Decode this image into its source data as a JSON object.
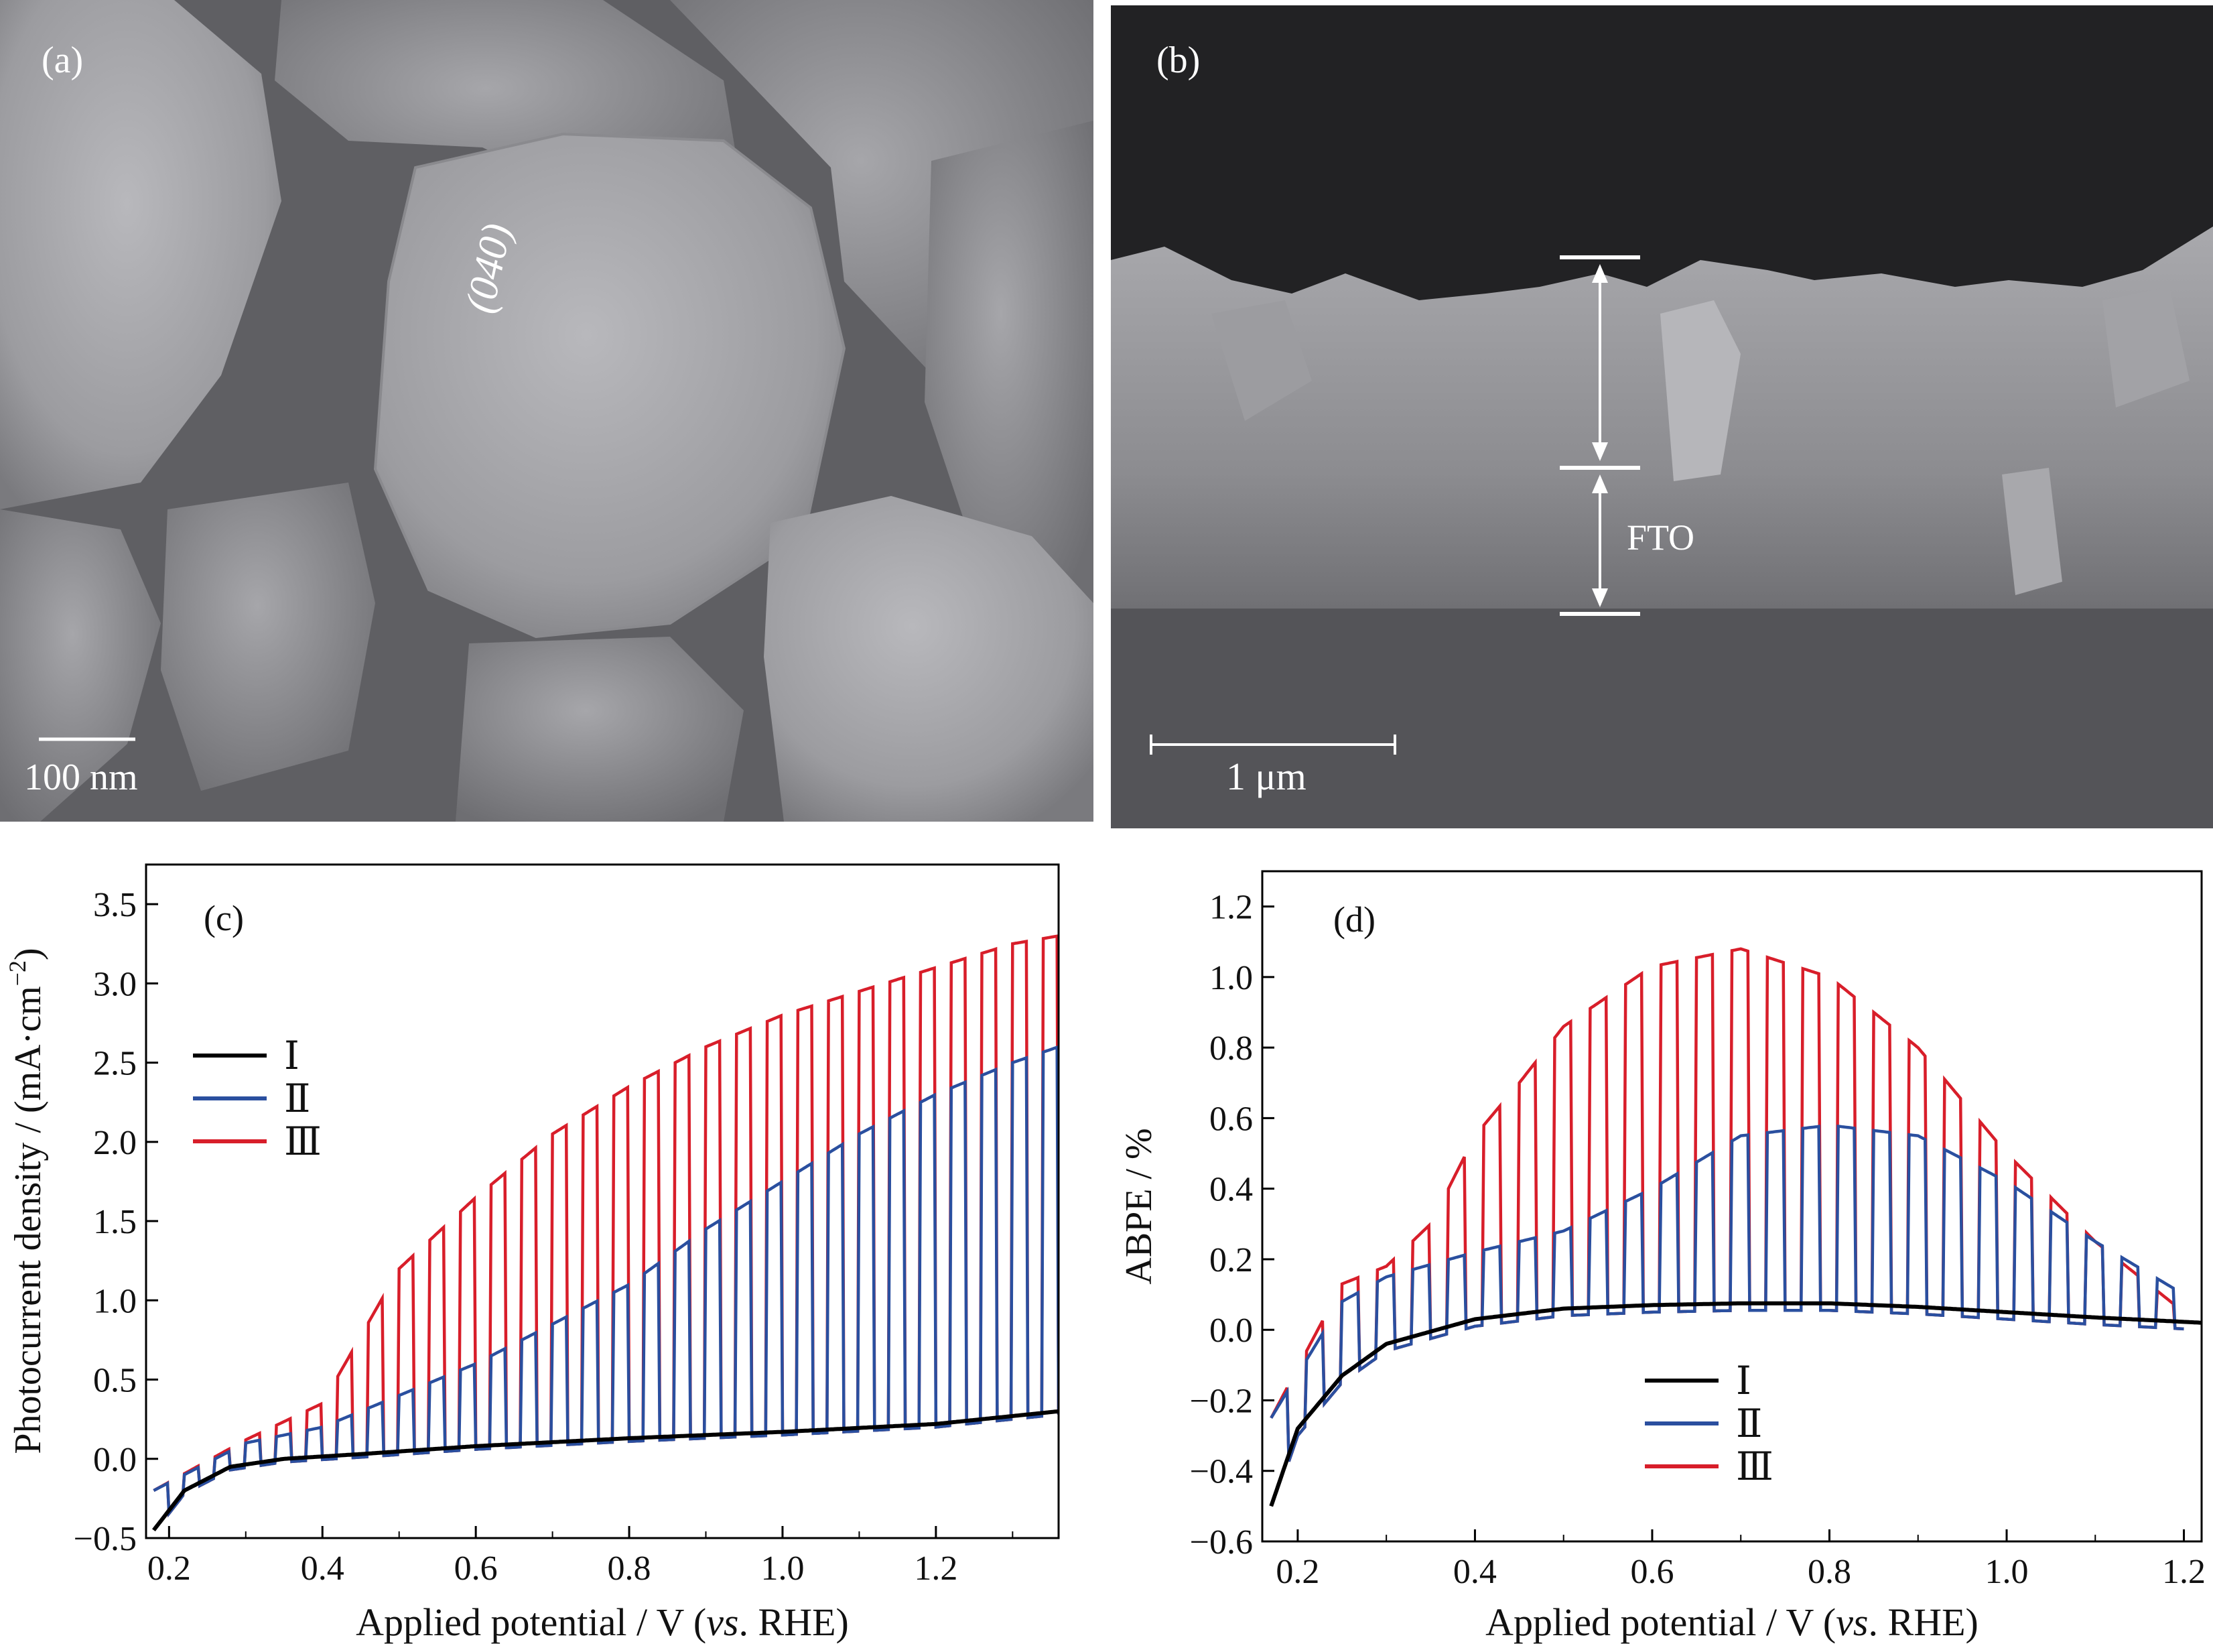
{
  "panels": {
    "a": {
      "label": "(a)",
      "facet_label": "(040)",
      "scalebar_label": "100 nm"
    },
    "b": {
      "label": "(b)",
      "layer_label": "FTO",
      "scalebar_label": "1 μm"
    }
  },
  "chart_data": [
    {
      "panel": "(c)",
      "type": "line",
      "xlabel_main": "Applied potential / V (",
      "xlabel_italic": "vs",
      "xlabel_end": ". RHE)",
      "ylabel": "Photocurrent density / (mA·cm",
      "ylabel_sup": "−2",
      "ylabel_end": ")",
      "xlim": [
        0.17,
        1.36
      ],
      "ylim": [
        -0.5,
        3.75
      ],
      "xticks": [
        0.2,
        0.4,
        0.6,
        0.8,
        1.0,
        1.2
      ],
      "xtick_labels": [
        "0.2",
        "0.4",
        "0.6",
        "0.8",
        "1.0",
        "1.2"
      ],
      "yticks": [
        -0.5,
        0.0,
        0.5,
        1.0,
        1.5,
        2.0,
        2.5,
        3.0,
        3.5
      ],
      "ytick_labels": [
        "−0.5",
        "0.0",
        "0.5",
        "1.0",
        "1.5",
        "2.0",
        "2.5",
        "3.0",
        "3.5"
      ],
      "legend": {
        "placement": "middle-left"
      },
      "chop_period_V": 0.04,
      "series": [
        {
          "name": "Ⅰ",
          "color": "#000000",
          "x": [
            0.18,
            0.22,
            0.28,
            0.35,
            0.45,
            0.6,
            0.8,
            1.0,
            1.2,
            1.36
          ],
          "y": [
            -0.45,
            -0.2,
            -0.05,
            0.0,
            0.03,
            0.08,
            0.13,
            0.17,
            0.22,
            0.3
          ]
        },
        {
          "name": "Ⅱ",
          "color": "#2a4f9f",
          "x": [
            0.18,
            0.3,
            0.4,
            0.5,
            0.6,
            0.7,
            0.8,
            0.9,
            1.0,
            1.1,
            1.2,
            1.3,
            1.36
          ],
          "y": [
            -0.2,
            0.1,
            0.2,
            0.4,
            0.6,
            0.85,
            1.1,
            1.45,
            1.75,
            2.05,
            2.3,
            2.5,
            2.6
          ]
        },
        {
          "name": "Ⅲ",
          "color": "#d81e2a",
          "x": [
            0.18,
            0.3,
            0.4,
            0.5,
            0.6,
            0.7,
            0.8,
            0.9,
            1.0,
            1.1,
            1.2,
            1.3,
            1.36
          ],
          "y": [
            -0.2,
            0.12,
            0.35,
            1.2,
            1.65,
            2.05,
            2.35,
            2.6,
            2.8,
            2.95,
            3.1,
            3.25,
            3.3
          ]
        }
      ]
    },
    {
      "panel": "(d)",
      "type": "line",
      "xlabel_main": "Applied potential / V (",
      "xlabel_italic": "vs",
      "xlabel_end": ". RHE)",
      "ylabel": "ABPE / %",
      "xlim": [
        0.16,
        1.22
      ],
      "ylim": [
        -0.6,
        1.3
      ],
      "xticks": [
        0.2,
        0.4,
        0.6,
        0.8,
        1.0,
        1.2
      ],
      "xtick_labels": [
        "0.2",
        "0.4",
        "0.6",
        "0.8",
        "1.0",
        "1.2"
      ],
      "yticks": [
        -0.6,
        -0.4,
        -0.2,
        0.0,
        0.2,
        0.4,
        0.6,
        0.8,
        1.0,
        1.2
      ],
      "ytick_labels": [
        "−0.6",
        "−0.4",
        "−0.2",
        "0.0",
        "0.2",
        "0.4",
        "0.6",
        "0.8",
        "1.0",
        "1.2"
      ],
      "legend": {
        "placement": "bottom-center"
      },
      "chop_period_V": 0.04,
      "series": [
        {
          "name": "Ⅰ",
          "color": "#000000",
          "x": [
            0.17,
            0.2,
            0.25,
            0.3,
            0.4,
            0.5,
            0.6,
            0.7,
            0.8,
            0.9,
            1.0,
            1.1,
            1.22
          ],
          "y": [
            -0.5,
            -0.28,
            -0.13,
            -0.04,
            0.03,
            0.06,
            0.07,
            0.075,
            0.075,
            0.065,
            0.05,
            0.035,
            0.02
          ]
        },
        {
          "name": "Ⅱ",
          "color": "#2a4f9f",
          "x": [
            0.17,
            0.25,
            0.3,
            0.4,
            0.5,
            0.6,
            0.7,
            0.8,
            0.9,
            1.0,
            1.1,
            1.2
          ],
          "y": [
            -0.25,
            0.08,
            0.15,
            0.22,
            0.28,
            0.4,
            0.55,
            0.58,
            0.55,
            0.42,
            0.25,
            0.1
          ]
        },
        {
          "name": "Ⅲ",
          "color": "#d81e2a",
          "x": [
            0.17,
            0.25,
            0.3,
            0.35,
            0.4,
            0.45,
            0.5,
            0.6,
            0.7,
            0.8,
            0.9,
            1.0,
            1.1,
            1.2
          ],
          "y": [
            -0.25,
            0.13,
            0.18,
            0.3,
            0.55,
            0.7,
            0.86,
            1.03,
            1.08,
            1.0,
            0.8,
            0.5,
            0.25,
            0.05
          ]
        }
      ]
    }
  ]
}
